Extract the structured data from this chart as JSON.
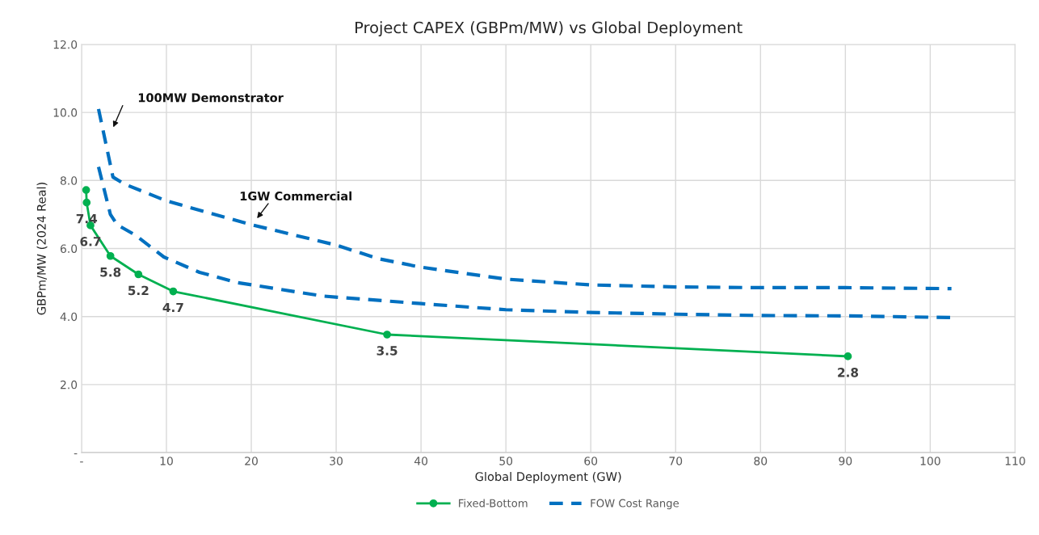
{
  "chart_data": {
    "type": "line",
    "title": "Project CAPEX (GBPm/MW) vs Global Deployment",
    "xlabel": "Global Deployment (GW)",
    "ylabel": "GBPm/MW (2024 Real)",
    "xlim": [
      0,
      110
    ],
    "xticks": [
      {
        "value": 0,
        "label": "-"
      },
      10,
      20,
      30,
      40,
      50,
      60,
      70,
      80,
      90,
      100,
      110
    ],
    "ylim": [
      0,
      12
    ],
    "yticks": [
      {
        "value": 0,
        "label": "-"
      },
      {
        "value": 2,
        "label": "2.0"
      },
      {
        "value": 4,
        "label": "4.0"
      },
      {
        "value": 6,
        "label": "6.0"
      },
      {
        "value": 8,
        "label": "8.0"
      },
      {
        "value": 10,
        "label": "10.0"
      },
      {
        "value": 12,
        "label": "12.0"
      }
    ],
    "grid": true,
    "legend": "bottom",
    "series": [
      {
        "name": "Fixed-Bottom",
        "color": "#00b050",
        "marker": "circle",
        "line_style": "solid",
        "x": [
          0.54,
          0.6,
          1.05,
          3.4,
          6.7,
          10.8,
          36.0,
          90.3
        ],
        "values": [
          7.72,
          7.35,
          6.68,
          5.78,
          5.24,
          4.74,
          3.47,
          2.83
        ],
        "value_labels": [
          null,
          "7.4",
          "6.7",
          "5.8",
          "5.2",
          "4.7",
          "3.5",
          "2.8"
        ]
      },
      {
        "name": "FOW Cost Range",
        "color": "#0070c0",
        "marker": "none",
        "line_style": "dashed",
        "x": [
          2.0,
          3.7,
          5,
          10,
          20,
          30,
          35,
          40,
          50,
          60,
          70,
          80,
          90,
          102.5
        ],
        "values": [
          10.1,
          8.1,
          7.9,
          7.4,
          6.7,
          6.1,
          5.7,
          5.45,
          5.1,
          4.93,
          4.87,
          4.85,
          4.85,
          4.82
        ]
      },
      {
        "color": "#0070c0",
        "marker": "none",
        "line_style": "dashed",
        "x": [
          2.0,
          3.4,
          4.2,
          6.3,
          9.7,
          13.9,
          18.3,
          28.5,
          40,
          50,
          60,
          70,
          80,
          90,
          102.5
        ],
        "values": [
          8.4,
          7.0,
          6.7,
          6.4,
          5.75,
          5.3,
          5.0,
          4.6,
          4.38,
          4.2,
          4.12,
          4.07,
          4.03,
          4.02,
          3.97
        ]
      }
    ],
    "annotations": [
      "100MW Demonstrator",
      "1GW Commercial"
    ]
  }
}
